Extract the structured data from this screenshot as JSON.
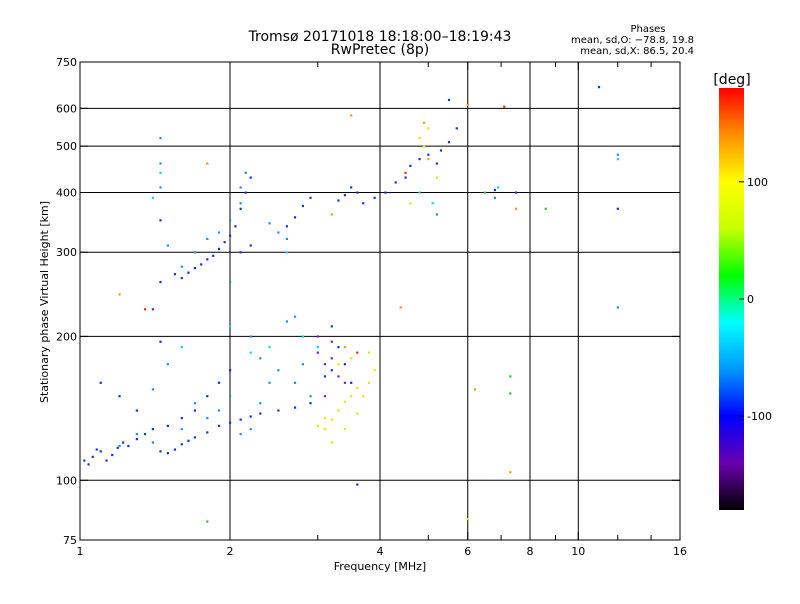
{
  "chart_data": {
    "type": "scatter",
    "title": "Tromsø 20171018 18:18:00–18:19:43",
    "subtitle": "RwPretec (8p)",
    "stats": {
      "heading": "Phases",
      "line1": "mean, sd,O: −78.8, 19.8",
      "line2": "mean, sd,X:  86.5, 20.4"
    },
    "xlabel": "Frequency [MHz]",
    "ylabel": "Stationary phase Virtual Height [km]",
    "x_scale": "log",
    "y_scale": "log",
    "xlim": [
      1,
      16
    ],
    "ylim": [
      75,
      750
    ],
    "grid": true,
    "x_ticks": [
      1,
      2,
      4,
      6,
      8,
      10,
      16
    ],
    "x_ticklabels": [
      "1",
      "2",
      "4",
      "6",
      "8",
      "10",
      "16"
    ],
    "x_minor_ticks": [
      3,
      5,
      7,
      9,
      12,
      14
    ],
    "x_gridlines": [
      2,
      4,
      6,
      8,
      10
    ],
    "y_ticks": [
      75,
      100,
      200,
      300,
      400,
      500,
      600,
      750
    ],
    "y_ticklabels": [
      "75",
      "100",
      "200",
      "300",
      "400",
      "500",
      "600",
      "750"
    ],
    "y_gridlines": [
      100,
      200,
      300,
      400,
      500,
      600
    ],
    "colorbar": {
      "label": "[deg]",
      "range": [
        -180,
        180
      ],
      "ticks": [
        100,
        0,
        -100
      ],
      "ticklabels": [
        "100",
        "0",
        "-100"
      ],
      "colors": [
        "#000000",
        "#6a00b0",
        "#0000ff",
        "#0098ff",
        "#00ffff",
        "#00ff00",
        "#c8ff00",
        "#ffff00",
        "#ff9000",
        "#ff0000"
      ]
    },
    "series": [
      {
        "color": "#0a34e8",
        "points": [
          [
            1.02,
            110
          ],
          [
            1.04,
            108
          ],
          [
            1.06,
            112
          ],
          [
            1.08,
            116
          ],
          [
            1.1,
            115
          ],
          [
            1.13,
            110
          ],
          [
            1.16,
            113
          ],
          [
            1.19,
            117
          ],
          [
            1.22,
            120
          ],
          [
            1.25,
            118
          ],
          [
            1.3,
            122
          ],
          [
            1.35,
            125
          ],
          [
            1.4,
            128
          ],
          [
            1.45,
            115
          ],
          [
            1.5,
            114
          ],
          [
            1.55,
            116
          ],
          [
            1.6,
            119
          ],
          [
            1.65,
            121
          ],
          [
            1.7,
            123
          ],
          [
            1.8,
            126
          ],
          [
            1.9,
            130
          ],
          [
            2.0,
            132
          ],
          [
            2.1,
            134
          ],
          [
            2.2,
            136
          ],
          [
            2.3,
            138
          ],
          [
            2.5,
            140
          ],
          [
            2.7,
            142
          ],
          [
            2.9,
            145
          ],
          [
            1.5,
            130
          ],
          [
            1.6,
            135
          ],
          [
            1.7,
            140
          ],
          [
            1.8,
            150
          ],
          [
            1.9,
            160
          ],
          [
            2.0,
            170
          ],
          [
            1.55,
            270
          ],
          [
            1.6,
            265
          ],
          [
            1.65,
            272
          ],
          [
            1.7,
            278
          ],
          [
            1.75,
            283
          ],
          [
            1.8,
            290
          ],
          [
            1.85,
            295
          ],
          [
            1.9,
            305
          ],
          [
            1.95,
            315
          ],
          [
            2.0,
            325
          ],
          [
            2.05,
            340
          ],
          [
            2.1,
            370
          ],
          [
            2.15,
            400
          ],
          [
            2.2,
            430
          ],
          [
            2.1,
            300
          ],
          [
            2.2,
            310
          ],
          [
            1.1,
            160
          ],
          [
            1.2,
            150
          ],
          [
            1.3,
            140
          ],
          [
            1.45,
            350
          ],
          [
            1.45,
            260
          ],
          [
            1.45,
            195
          ],
          [
            2.6,
            340
          ],
          [
            2.7,
            355
          ],
          [
            2.8,
            375
          ],
          [
            2.9,
            390
          ],
          [
            3.3,
            385
          ],
          [
            3.4,
            395
          ],
          [
            3.5,
            410
          ],
          [
            3.6,
            400
          ],
          [
            3.7,
            380
          ],
          [
            3.9,
            390
          ],
          [
            4.1,
            400
          ],
          [
            4.3,
            420
          ],
          [
            4.5,
            430
          ],
          [
            4.6,
            455
          ],
          [
            4.8,
            470
          ],
          [
            5.0,
            480
          ],
          [
            5.2,
            460
          ],
          [
            5.3,
            490
          ],
          [
            5.5,
            510
          ],
          [
            5.7,
            545
          ],
          [
            5.5,
            625
          ],
          [
            6.8,
            405
          ],
          [
            7.5,
            400
          ],
          [
            11.0,
            665
          ],
          [
            12.0,
            370
          ],
          [
            3.1,
            165
          ],
          [
            3.2,
            170
          ],
          [
            3.3,
            190
          ],
          [
            3.4,
            175
          ],
          [
            3.5,
            160
          ],
          [
            3.2,
            210
          ],
          [
            3.6,
            98
          ]
        ]
      },
      {
        "color": "#1e8cf0",
        "points": [
          [
            1.45,
            520
          ],
          [
            1.45,
            460
          ],
          [
            1.45,
            410
          ],
          [
            1.5,
            310
          ],
          [
            1.6,
            280
          ],
          [
            1.7,
            300
          ],
          [
            1.8,
            320
          ],
          [
            1.9,
            330
          ],
          [
            2.0,
            350
          ],
          [
            2.1,
            380
          ],
          [
            2.15,
            440
          ],
          [
            2.1,
            410
          ],
          [
            2.0,
            260
          ],
          [
            2.2,
            200
          ],
          [
            2.3,
            180
          ],
          [
            2.4,
            160
          ],
          [
            2.5,
            170
          ],
          [
            2.6,
            215
          ],
          [
            2.7,
            220
          ],
          [
            2.8,
            175
          ],
          [
            2.9,
            150
          ],
          [
            2.5,
            330
          ],
          [
            2.6,
            320
          ],
          [
            2.4,
            345
          ],
          [
            2.0,
            150
          ],
          [
            1.9,
            140
          ],
          [
            1.8,
            135
          ],
          [
            1.7,
            145
          ],
          [
            1.6,
            128
          ],
          [
            1.4,
            120
          ],
          [
            1.3,
            125
          ],
          [
            1.2,
            118
          ],
          [
            2.1,
            125
          ],
          [
            2.2,
            128
          ],
          [
            2.3,
            145
          ],
          [
            2.7,
            160
          ],
          [
            5.2,
            360
          ],
          [
            6.8,
            390
          ],
          [
            12.0,
            480
          ],
          [
            12.0,
            230
          ],
          [
            1.4,
            155
          ],
          [
            1.5,
            175
          ]
        ]
      },
      {
        "color": "#00dcdc",
        "points": [
          [
            1.4,
            390
          ],
          [
            1.45,
            440
          ],
          [
            2.0,
            210
          ],
          [
            2.2,
            185
          ],
          [
            2.6,
            300
          ],
          [
            2.8,
            200
          ],
          [
            3.0,
            190
          ],
          [
            4.8,
            400
          ],
          [
            5.1,
            380
          ],
          [
            6.9,
            410
          ],
          [
            12.0,
            470
          ],
          [
            1.6,
            190
          ],
          [
            2.4,
            190
          ]
        ]
      },
      {
        "color": "#7a1ad8",
        "points": [
          [
            3.0,
            185
          ],
          [
            3.1,
            175
          ],
          [
            3.2,
            180
          ],
          [
            3.3,
            165
          ],
          [
            3.4,
            160
          ],
          [
            3.2,
            195
          ],
          [
            1.4,
            228
          ],
          [
            3.1,
            150
          ],
          [
            3.0,
            200
          ]
        ]
      },
      {
        "color": "#e6e600",
        "points": [
          [
            3.0,
            130
          ],
          [
            3.1,
            128
          ],
          [
            3.2,
            134
          ],
          [
            3.3,
            140
          ],
          [
            3.4,
            146
          ],
          [
            3.5,
            150
          ],
          [
            3.6,
            156
          ],
          [
            3.7,
            150
          ],
          [
            3.8,
            160
          ],
          [
            3.9,
            170
          ],
          [
            3.3,
            175
          ],
          [
            3.5,
            180
          ],
          [
            3.2,
            120
          ],
          [
            3.1,
            135
          ],
          [
            3.4,
            128
          ],
          [
            3.6,
            138
          ],
          [
            4.8,
            520
          ],
          [
            4.9,
            500
          ],
          [
            5.0,
            545
          ],
          [
            5.2,
            430
          ],
          [
            4.6,
            380
          ],
          [
            3.8,
            185
          ],
          [
            6.0,
            83
          ]
        ]
      },
      {
        "color": "#f0a000",
        "points": [
          [
            3.2,
            360
          ],
          [
            3.5,
            580
          ],
          [
            4.4,
            230
          ],
          [
            6.2,
            155
          ],
          [
            7.3,
            104
          ],
          [
            7.5,
            370
          ],
          [
            3.4,
            190
          ],
          [
            5.0,
            470
          ],
          [
            1.2,
            245
          ],
          [
            1.8,
            460
          ],
          [
            4.9,
            560
          ],
          [
            6.0,
            610
          ]
        ]
      },
      {
        "color": "#ff2a00",
        "points": [
          [
            1.35,
            228
          ],
          [
            7.1,
            605
          ],
          [
            4.5,
            440
          ],
          [
            3.6,
            185
          ]
        ]
      },
      {
        "color": "#22cc22",
        "points": [
          [
            8.6,
            370
          ],
          [
            7.3,
            165
          ],
          [
            7.3,
            152
          ],
          [
            1.8,
            82
          ],
          [
            6.5,
            400
          ]
        ]
      }
    ]
  }
}
